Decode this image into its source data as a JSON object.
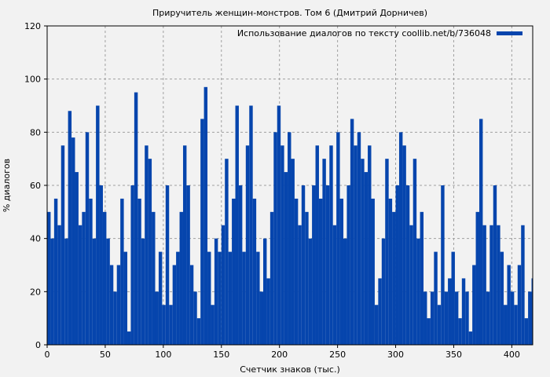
{
  "chart_data": {
    "type": "bar",
    "title": "Приручитель женщин-монстров. Том 6 (Дмитрий Дорничев)",
    "xlabel": "Счетчик знаков (тыс.)",
    "ylabel": "% диалогов",
    "legend": {
      "label": "Использование диалогов по тексту coollib.net/b/736048",
      "placement": "top-right"
    },
    "xlim": [
      0,
      418
    ],
    "ylim": [
      0,
      120
    ],
    "xticks": [
      0,
      50,
      100,
      150,
      200,
      250,
      300,
      350,
      400
    ],
    "yticks": [
      0,
      20,
      40,
      60,
      80,
      100,
      120
    ],
    "grid": true,
    "bar_color": "#0645ad",
    "bin_width": 3,
    "x_start": 0,
    "values": [
      50,
      40,
      55,
      45,
      75,
      40,
      88,
      78,
      65,
      45,
      50,
      80,
      55,
      40,
      90,
      60,
      50,
      40,
      30,
      20,
      30,
      55,
      35,
      5,
      60,
      95,
      55,
      40,
      75,
      70,
      50,
      20,
      35,
      15,
      60,
      15,
      30,
      35,
      50,
      75,
      60,
      30,
      20,
      10,
      85,
      97,
      35,
      15,
      40,
      35,
      45,
      70,
      35,
      55,
      90,
      60,
      35,
      75,
      90,
      55,
      35,
      20,
      40,
      25,
      50,
      80,
      90,
      75,
      65,
      80,
      70,
      55,
      45,
      60,
      50,
      40,
      60,
      75,
      55,
      70,
      60,
      75,
      45,
      80,
      55,
      40,
      60,
      85,
      75,
      80,
      70,
      65,
      75,
      55,
      15,
      25,
      40,
      70,
      55,
      50,
      60,
      80,
      75,
      60,
      45,
      70,
      40,
      50,
      20,
      10,
      20,
      35,
      15,
      60,
      20,
      25,
      35,
      20,
      10,
      25,
      20,
      5,
      30,
      50,
      85,
      45,
      20,
      45,
      60,
      45,
      35,
      15,
      30,
      20,
      15,
      30,
      45,
      10,
      20,
      25
    ]
  }
}
